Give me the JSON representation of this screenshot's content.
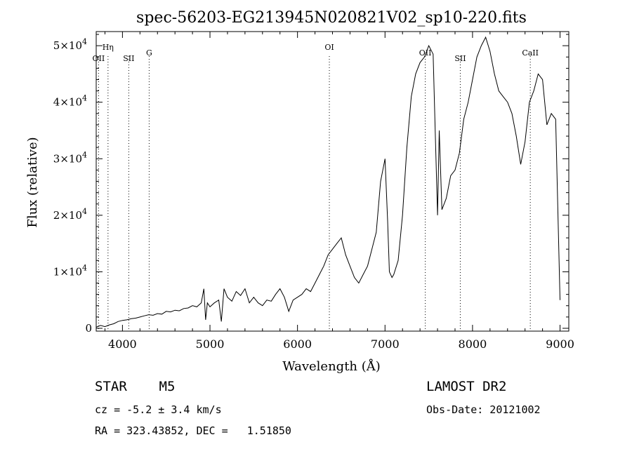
{
  "chart_data": {
    "type": "line",
    "title": "spec-56203-EG213945N020821V02_sp10-220.fits",
    "xlabel": "Wavelength (Å)",
    "ylabel": "Flux (relative)",
    "xlim": [
      3700,
      9100
    ],
    "ylim": [
      -500,
      52500
    ],
    "xticks": [
      {
        "value": 4000,
        "label": "4000"
      },
      {
        "value": 5000,
        "label": "5000"
      },
      {
        "value": 6000,
        "label": "6000"
      },
      {
        "value": 7000,
        "label": "7000"
      },
      {
        "value": 8000,
        "label": "8000"
      },
      {
        "value": 9000,
        "label": "9000"
      }
    ],
    "yticks": [
      {
        "value": 0,
        "mant": "0",
        "exp": ""
      },
      {
        "value": 10000,
        "mant": "1×10",
        "exp": "4"
      },
      {
        "value": 20000,
        "mant": "2×10",
        "exp": "4"
      },
      {
        "value": 30000,
        "mant": "3×10",
        "exp": "4"
      },
      {
        "value": 40000,
        "mant": "4×10",
        "exp": "4"
      },
      {
        "value": 50000,
        "mant": "5×10",
        "exp": "4"
      }
    ],
    "series": [
      {
        "x": [
          3700,
          3750,
          3800,
          3850,
          3900,
          3950,
          4000,
          4050,
          4100,
          4150,
          4200,
          4250,
          4300,
          4350,
          4400,
          4450,
          4500,
          4550,
          4600,
          4650,
          4700,
          4750,
          4800,
          4850,
          4900,
          4930,
          4950,
          4970,
          5000,
          5050,
          5100,
          5130,
          5160,
          5200,
          5250,
          5300,
          5350,
          5400,
          5450,
          5500,
          5550,
          5600,
          5650,
          5700,
          5750,
          5800,
          5850,
          5900,
          5950,
          6000,
          6050,
          6100,
          6150,
          6200,
          6250,
          6300,
          6350,
          6400,
          6450,
          6500,
          6550,
          6600,
          6650,
          6700,
          6750,
          6800,
          6850,
          6900,
          6950,
          7000,
          7030,
          7050,
          7080,
          7100,
          7150,
          7200,
          7250,
          7300,
          7350,
          7400,
          7450,
          7500,
          7550,
          7570,
          7600,
          7620,
          7650,
          7700,
          7750,
          7800,
          7850,
          7900,
          7950,
          8000,
          8050,
          8100,
          8150,
          8200,
          8250,
          8300,
          8350,
          8400,
          8450,
          8500,
          8550,
          8600,
          8650,
          8700,
          8750,
          8800,
          8850,
          8900,
          8950,
          9000
        ],
        "y": [
          200,
          500,
          300,
          600,
          800,
          1200,
          1400,
          1500,
          1700,
          1800,
          2000,
          2200,
          2400,
          2300,
          2600,
          2500,
          3000,
          2900,
          3200,
          3100,
          3500,
          3600,
          4000,
          3800,
          4500,
          7000,
          1500,
          4500,
          3800,
          4500,
          5000,
          1200,
          7000,
          5500,
          4800,
          6500,
          5800,
          7000,
          4500,
          5500,
          4500,
          4000,
          5000,
          4800,
          6000,
          7000,
          5500,
          3000,
          5000,
          5500,
          6000,
          7000,
          6500,
          8000,
          9500,
          11000,
          13000,
          14000,
          15000,
          16000,
          13000,
          11000,
          9000,
          8000,
          9500,
          11000,
          14000,
          17000,
          26000,
          30000,
          19000,
          10000,
          9000,
          9500,
          12000,
          20000,
          32000,
          41000,
          45000,
          47000,
          48000,
          50000,
          48500,
          37000,
          20000,
          35000,
          21000,
          23000,
          27000,
          28000,
          31000,
          37000,
          40000,
          44000,
          48000,
          50000,
          51500,
          49000,
          45000,
          42000,
          41000,
          40000,
          38000,
          34000,
          29000,
          33000,
          40000,
          42000,
          45000,
          44000,
          36000,
          38000,
          37000,
          5000
        ]
      }
    ],
    "lines": [
      {
        "x": 3727,
        "label": "OII",
        "row": 2
      },
      {
        "x": 3835,
        "label": "Hη",
        "row": 1
      },
      {
        "x": 4072,
        "label": "SII",
        "row": 2
      },
      {
        "x": 4305,
        "label": "G",
        "row": 1.5
      },
      {
        "x": 6364,
        "label": "OI",
        "row": 1
      },
      {
        "x": 7460,
        "label": "OII",
        "row": 1.5
      },
      {
        "x": 7860,
        "label": "SII",
        "row": 2
      },
      {
        "x": 8660,
        "label": "CaII",
        "row": 1.5
      }
    ]
  },
  "info": {
    "object": "STAR    M5",
    "survey": "LAMOST DR2",
    "cz": "cz = -5.2 ± 3.4 km/s",
    "obs_date": "Obs-Date: 20121002",
    "radec": "RA = 323.43852, DEC =   1.51850"
  }
}
